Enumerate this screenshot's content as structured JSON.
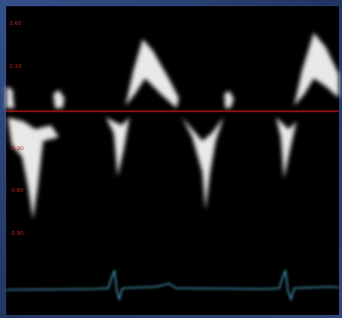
{
  "scale": {
    "labels": [
      "0.60",
      "0.30",
      "-0.30",
      "-0.60",
      "-0.90"
    ]
  }
}
